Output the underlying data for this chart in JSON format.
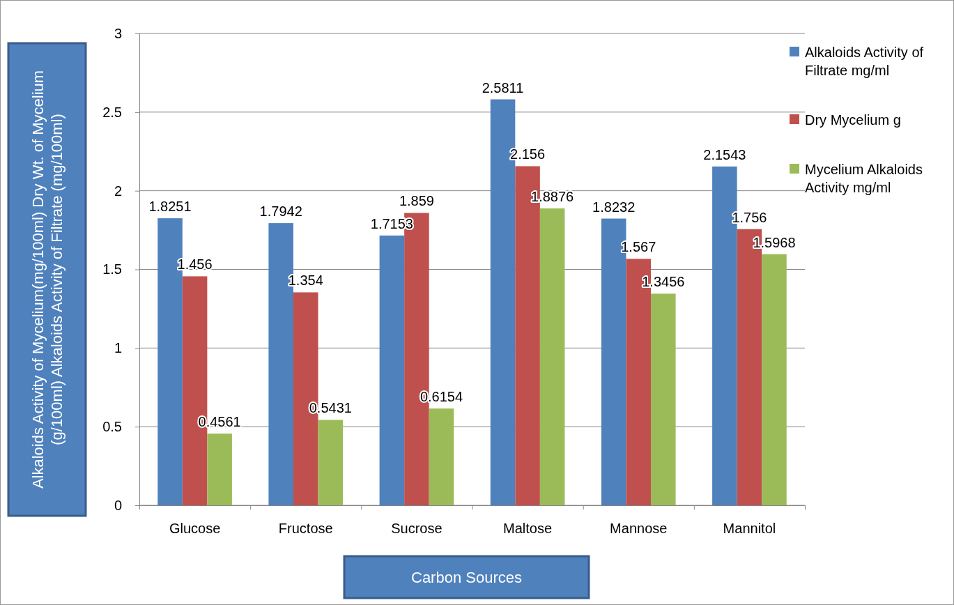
{
  "chart_data": {
    "type": "bar",
    "xlabel": "Carbon Sources",
    "ylabel": "Alkaloids Activity of Mycelium(mg/100ml) Dry Wt. of Mycelium (g/100ml) Alkaloids Activity of Filtrate (mg/100ml)",
    "categories": [
      "Glucose",
      "Fructose",
      "Sucrose",
      "Maltose",
      "Mannose",
      "Mannitol"
    ],
    "series": [
      {
        "name": "Alkaloids Activity of Filtrate mg/ml",
        "color": "#4f81bd",
        "values": [
          1.8251,
          1.7942,
          1.7153,
          2.5811,
          1.8232,
          2.1543
        ]
      },
      {
        "name": "Dry Mycelium g",
        "color": "#c0504d",
        "values": [
          1.456,
          1.354,
          1.859,
          2.156,
          1.567,
          1.756
        ]
      },
      {
        "name": "Mycelium Alkaloids Activity mg/ml",
        "color": "#9bbb59",
        "values": [
          0.4561,
          0.5431,
          0.6154,
          1.8876,
          1.3456,
          1.5968
        ]
      }
    ],
    "ylim": [
      0,
      3
    ],
    "yticks": [
      0,
      0.5,
      1,
      1.5,
      2,
      2.5,
      3
    ],
    "grid": "y",
    "legend": "right",
    "data_labels": true
  }
}
